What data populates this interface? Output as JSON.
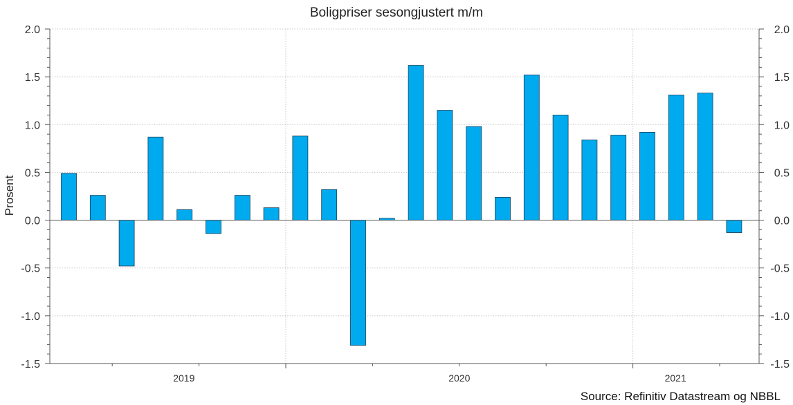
{
  "chart_data": {
    "type": "bar",
    "title": "Boligpriser sesongjustert m/m",
    "ylabel": "Prosent",
    "xlabel": "",
    "ylim": [
      -1.5,
      2.0
    ],
    "yticks": [
      "2.0",
      "1.5",
      "1.0",
      "0.5",
      "0.0",
      "-0.5",
      "-1.0",
      "-1.5"
    ],
    "ytick_values": [
      2.0,
      1.5,
      1.0,
      0.5,
      0.0,
      -0.5,
      -1.0,
      -1.5
    ],
    "year_labels": [
      "2019",
      "2020",
      "2021"
    ],
    "values": [
      0.49,
      0.26,
      -0.48,
      0.87,
      0.11,
      -0.14,
      0.26,
      0.13,
      0.88,
      0.32,
      -1.31,
      0.02,
      1.62,
      1.15,
      0.98,
      0.24,
      1.52,
      1.1,
      0.84,
      0.89,
      0.92,
      1.31,
      1.33,
      -0.13
    ],
    "bar_color": "#00aaee",
    "grid": true,
    "source": "Source: Refinitiv Datastream og NBBL"
  }
}
